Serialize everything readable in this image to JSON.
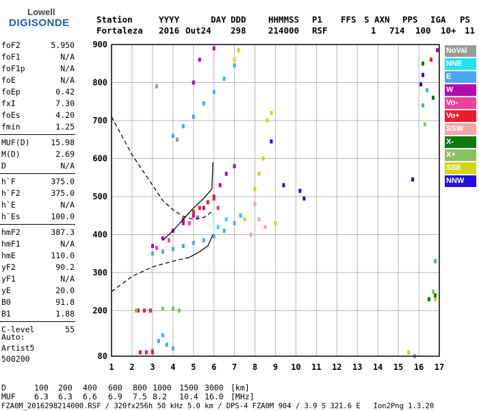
{
  "logo": {
    "line1": "Lowell",
    "line2": "DIGISONDE"
  },
  "header": {
    "labels": [
      "Station",
      "YYYY",
      "DAY",
      "DDD",
      "HHMMSS",
      "P1",
      "FFS",
      "S",
      "AXN",
      "PPS",
      "IGA",
      "PS"
    ],
    "values": [
      "Fortaleza",
      "2016",
      "Out24",
      "298",
      "214000",
      "RSF",
      "",
      "1",
      "714",
      "100",
      "10+",
      "11"
    ]
  },
  "params": [
    {
      "key": "foF2",
      "value": "5.950"
    },
    {
      "key": "foF1",
      "value": "N/A"
    },
    {
      "key": "foF1p",
      "value": "N/A"
    },
    {
      "key": "foE",
      "value": "N/A"
    },
    {
      "key": "foEp",
      "value": "0.42"
    },
    {
      "key": "fxI",
      "value": "7.30"
    },
    {
      "key": "foEs",
      "value": "4.20"
    },
    {
      "key": "fmin",
      "value": "1.25"
    },
    {
      "key": "MUF(D)",
      "value": "15.98"
    },
    {
      "key": "M(D)",
      "value": "2.69"
    },
    {
      "key": "D",
      "value": "N/A"
    },
    {
      "key": "h`F",
      "value": "375.0"
    },
    {
      "key": "h`F2",
      "value": "375.0"
    },
    {
      "key": "h`E",
      "value": "N/A"
    },
    {
      "key": "h`Es",
      "value": "100.0"
    },
    {
      "key": "hmF2",
      "value": "387.3"
    },
    {
      "key": "hmF1",
      "value": "N/A"
    },
    {
      "key": "hmE",
      "value": "110.0"
    },
    {
      "key": "yF2",
      "value": "90.2"
    },
    {
      "key": "yF1",
      "value": "N/A"
    },
    {
      "key": "yE",
      "value": "20.0"
    },
    {
      "key": "B0",
      "value": "91.8"
    },
    {
      "key": "B1",
      "value": "1.88"
    },
    {
      "key": "C-level",
      "value": "55"
    }
  ],
  "auto": {
    "line1": "Auto:",
    "line2": "Artist5",
    "line3": "500200"
  },
  "legend": [
    {
      "label": "NoVal",
      "color": "#9a9a9a"
    },
    {
      "label": "NNE",
      "color": "#22e0f5"
    },
    {
      "label": "E",
      "color": "#4aa6f0"
    },
    {
      "label": "W",
      "color": "#b40aa8"
    },
    {
      "label": "Vo-",
      "color": "#f0409a"
    },
    {
      "label": "Vo+",
      "color": "#ee1c2c"
    },
    {
      "label": "SSW",
      "color": "#f2a6aa"
    },
    {
      "label": "X-",
      "color": "#0c7a10"
    },
    {
      "label": "X+",
      "color": "#88c060"
    },
    {
      "label": "SSE",
      "color": "#d4d416"
    },
    {
      "label": "NNW",
      "color": "#2010d8"
    }
  ],
  "footer": {
    "row1_label": "D",
    "row1_values": [
      "100",
      "200",
      "400",
      "600",
      "800",
      "1000",
      "1500",
      "3000"
    ],
    "row1_unit": "[km]",
    "row2_label": "MUF",
    "row2_values": [
      "6.3",
      "6.3",
      "6.6",
      "6.9",
      "7.5",
      "8.2",
      "10.4",
      "16.0"
    ],
    "row2_unit": "[MHz]",
    "line3": "FZA0M_2016298214000.RSF / 320fx256h 50 kHz 5.0 km / DPS-4 FZA0M 904 / 3.9 S 321.6 E   Ion2Png 1.3.20"
  },
  "chart_data": {
    "type": "scatter",
    "title": "",
    "xlabel": "",
    "ylabel": "",
    "xlim": [
      1,
      17
    ],
    "ylim": [
      80,
      900
    ],
    "x_ticks": [
      1,
      2,
      3,
      4,
      5,
      6,
      7,
      8,
      9,
      10,
      11,
      12,
      13,
      14,
      15,
      16,
      17
    ],
    "y_ticks": [
      80,
      200,
      300,
      400,
      500,
      600,
      700,
      800,
      900
    ],
    "grid": true,
    "legend_placement": "right",
    "series": [
      {
        "legend_label": "E",
        "color": "#4aa6f0",
        "points": [
          [
            3.0,
            95
          ],
          [
            3.3,
            120
          ],
          [
            3.5,
            135
          ],
          [
            3.7,
            110
          ],
          [
            4.0,
            100
          ],
          [
            3.0,
            350
          ],
          [
            3.5,
            355
          ],
          [
            4.0,
            362
          ],
          [
            4.5,
            370
          ],
          [
            5.0,
            378
          ],
          [
            5.5,
            385
          ],
          [
            6.0,
            395
          ],
          [
            6.5,
            410
          ],
          [
            7.0,
            430
          ],
          [
            7.3,
            450
          ],
          [
            4.0,
            660
          ],
          [
            4.5,
            685
          ],
          [
            5.0,
            710
          ],
          [
            5.5,
            745
          ],
          [
            6.0,
            775
          ],
          [
            6.5,
            810
          ],
          [
            7.0,
            845
          ],
          [
            16.2,
            740
          ],
          [
            16.4,
            780
          ],
          [
            16.8,
            330
          ]
        ]
      },
      {
        "legend_label": "W",
        "color": "#b40aa8",
        "points": [
          [
            3.0,
            370
          ],
          [
            3.5,
            390
          ],
          [
            4.0,
            410
          ],
          [
            4.5,
            430
          ],
          [
            5.0,
            450
          ],
          [
            5.5,
            470
          ],
          [
            6.0,
            500
          ],
          [
            6.3,
            530
          ],
          [
            6.6,
            560
          ],
          [
            7.0,
            580
          ],
          [
            5.0,
            800
          ],
          [
            5.3,
            860
          ],
          [
            6.0,
            890
          ],
          [
            16.9,
            885
          ]
        ]
      },
      {
        "legend_label": "Vo+",
        "color": "#ee1c2c",
        "points": [
          [
            2.3,
            200
          ],
          [
            2.6,
            200
          ],
          [
            2.9,
            200
          ],
          [
            2.4,
            90
          ],
          [
            2.7,
            90
          ],
          [
            3.0,
            90
          ],
          [
            4.5,
            440
          ],
          [
            5.0,
            460
          ],
          [
            5.3,
            470
          ],
          [
            5.7,
            485
          ],
          [
            6.0,
            495
          ],
          [
            16.6,
            860
          ]
        ]
      },
      {
        "legend_label": "Vo-",
        "color": "#f0409a",
        "points": [
          [
            3.2,
            365
          ],
          [
            3.8,
            385
          ],
          [
            4.8,
            430
          ],
          [
            5.2,
            445
          ],
          [
            6.2,
            470
          ]
        ]
      },
      {
        "legend_label": "SSE",
        "color": "#d4d416",
        "points": [
          [
            7.0,
            860
          ],
          [
            7.2,
            885
          ],
          [
            7.5,
            440
          ],
          [
            8.0,
            520
          ],
          [
            8.2,
            560
          ],
          [
            8.4,
            600
          ],
          [
            8.6,
            700
          ],
          [
            8.8,
            720
          ],
          [
            9.0,
            430
          ],
          [
            16.8,
            230
          ],
          [
            15.5,
            90
          ]
        ]
      },
      {
        "legend_label": "NNE",
        "color": "#22e0f5",
        "points": [
          [
            6.2,
            420
          ],
          [
            6.6,
            440
          ]
        ]
      },
      {
        "legend_label": "X+",
        "color": "#88c060",
        "points": [
          [
            2.2,
            200
          ],
          [
            3.5,
            205
          ],
          [
            4.0,
            205
          ],
          [
            4.3,
            200
          ],
          [
            16.3,
            690
          ],
          [
            16.7,
            250
          ]
        ]
      },
      {
        "legend_label": "X-",
        "color": "#0c7a10",
        "points": [
          [
            16.2,
            850
          ],
          [
            16.8,
            240
          ],
          [
            16.5,
            230
          ],
          [
            16.7,
            760
          ]
        ]
      },
      {
        "legend_label": "SSW",
        "color": "#f2a6aa",
        "points": [
          [
            8.0,
            480
          ],
          [
            8.2,
            440
          ],
          [
            8.5,
            420
          ],
          [
            7.8,
            400
          ]
        ]
      },
      {
        "legend_label": "NNW",
        "color": "#2010d8",
        "points": [
          [
            8.8,
            645
          ],
          [
            9.4,
            530
          ],
          [
            10.2,
            515
          ],
          [
            10.4,
            495
          ],
          [
            15.7,
            545
          ],
          [
            16.1,
            795
          ],
          [
            16.2,
            820
          ]
        ]
      },
      {
        "legend_label": "NoVal",
        "color": "#9a9a9a",
        "points": [
          [
            3.2,
            790
          ],
          [
            4.2,
            650
          ],
          [
            15.8,
            80
          ]
        ]
      }
    ],
    "curves": [
      {
        "style": "dashed",
        "color": "#000000",
        "points": [
          [
            1.0,
            710
          ],
          [
            1.5,
            660
          ],
          [
            2.0,
            610
          ],
          [
            2.5,
            570
          ],
          [
            3.0,
            530
          ],
          [
            3.5,
            490
          ],
          [
            4.0,
            465
          ],
          [
            4.5,
            448
          ],
          [
            5.0,
            440
          ],
          [
            5.5,
            445
          ],
          [
            5.9,
            460
          ]
        ]
      },
      {
        "style": "dashed",
        "color": "#000000",
        "points": [
          [
            1.0,
            250
          ],
          [
            2.0,
            290
          ],
          [
            3.0,
            315
          ],
          [
            4.0,
            330
          ],
          [
            4.8,
            340
          ]
        ]
      },
      {
        "style": "solid",
        "color": "#000000",
        "points": [
          [
            4.8,
            340
          ],
          [
            5.3,
            355
          ],
          [
            5.7,
            370
          ],
          [
            5.95,
            400
          ]
        ]
      },
      {
        "style": "solid",
        "color": "#000000",
        "points": [
          [
            3.5,
            385
          ],
          [
            4.0,
            410
          ],
          [
            4.5,
            440
          ],
          [
            5.0,
            470
          ],
          [
            5.5,
            495
          ],
          [
            5.9,
            520
          ],
          [
            5.95,
            590
          ]
        ]
      }
    ]
  }
}
